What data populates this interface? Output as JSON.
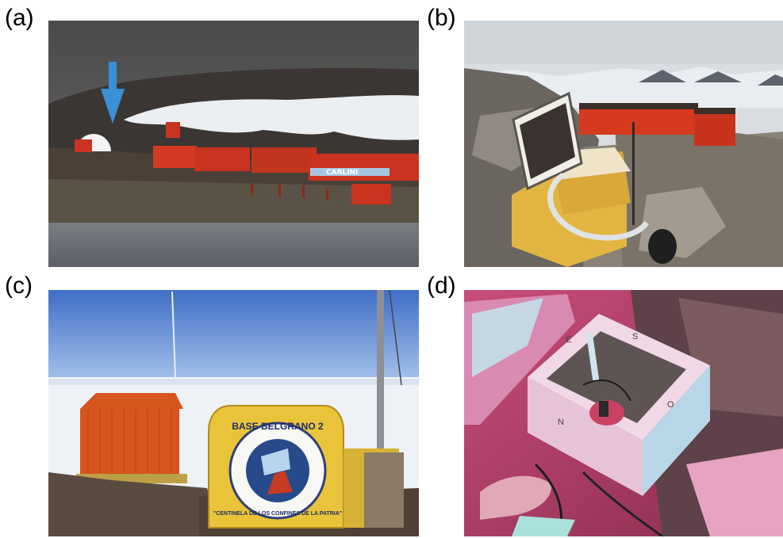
{
  "panels": [
    {
      "label": "(a)",
      "photo_text": "CARLINI",
      "arrow_icon": "down-arrow-icon",
      "arrow_color": "#3a8fd6"
    },
    {
      "label": "(b)"
    },
    {
      "label": "(c)",
      "sign_top": "BASE BELGRANO 2",
      "sign_bottom": "\"CENTINELA DE LOS CONFINES DE LA PATRIA\""
    },
    {
      "label": "(d)",
      "box_letters": [
        "S",
        "O",
        "N",
        "E"
      ]
    }
  ]
}
